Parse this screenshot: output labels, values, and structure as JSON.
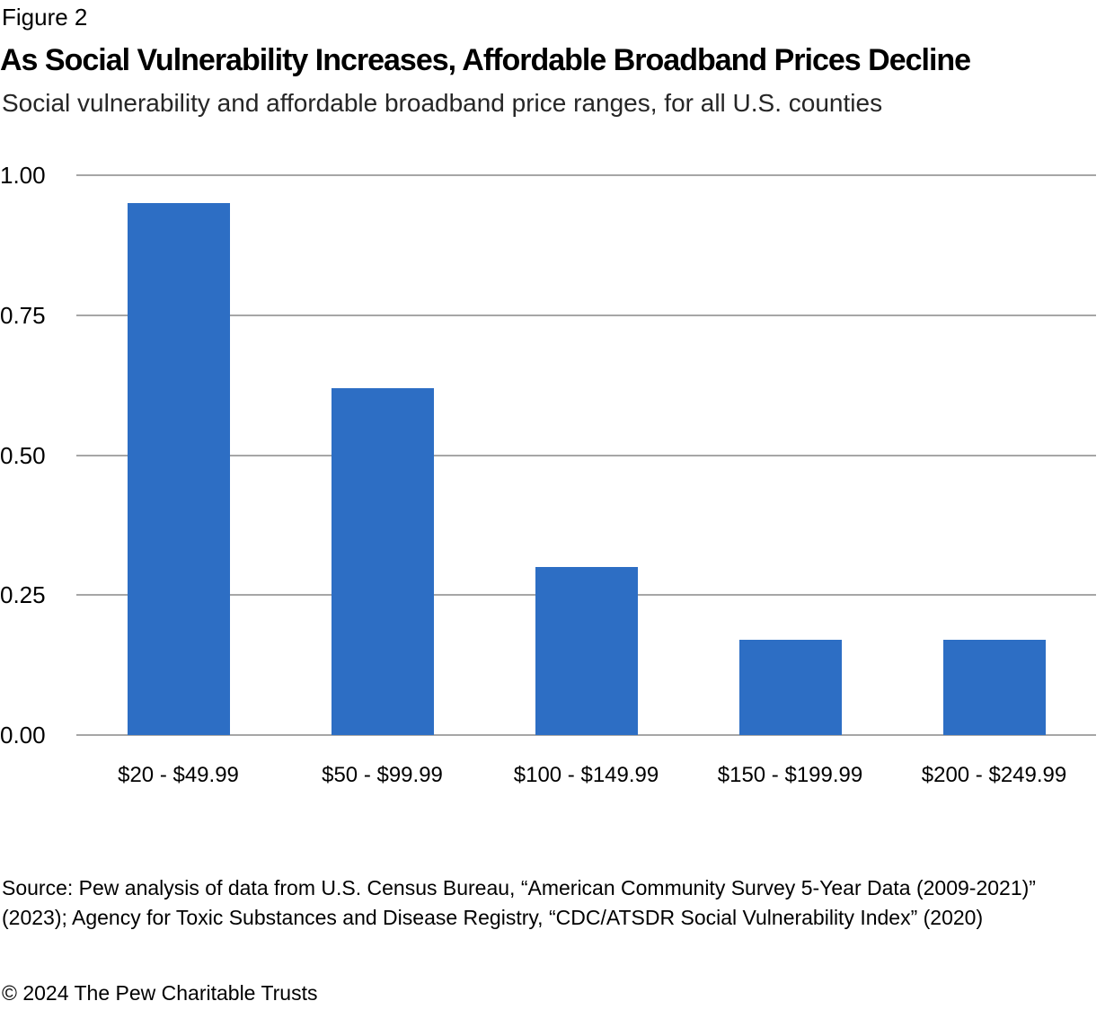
{
  "figure_label": "Figure 2",
  "title": "As Social Vulnerability Increases, Affordable Broadband Prices Decline",
  "subtitle": "Social vulnerability and affordable broadband price ranges, for all U.S. counties",
  "source": "Source: Pew analysis of data from U.S. Census Bureau, “American Community Survey 5-Year Data (2009-2021)” (2023); Agency for Toxic Substances and Disease Registry, “CDC/ATSDR Social Vulnerability Index” (2020)",
  "copyright": "© 2024 The Pew Charitable Trusts",
  "chart_data": {
    "type": "bar",
    "title": "As Social Vulnerability Increases, Affordable Broadband Prices Decline",
    "subtitle": "Social vulnerability and affordable broadband price ranges, for all U.S. counties",
    "categories": [
      "$20 - $49.99",
      "$50 - $99.99",
      "$100 - $149.99",
      "$150 - $199.99",
      "$200 - $249.99"
    ],
    "values": [
      0.95,
      0.62,
      0.3,
      0.17,
      0.17
    ],
    "xlabel": "",
    "ylabel": "",
    "ylim": [
      0,
      1
    ],
    "yticks": [
      0,
      0.25,
      0.5,
      0.75,
      1
    ],
    "ytick_labels": [
      "0.00",
      "0.25",
      "0.50",
      "0.75",
      "1.00"
    ],
    "grid": true,
    "legend": false,
    "bar_color": "#2d6ec4",
    "gridline_color": "#a6a6a6"
  }
}
